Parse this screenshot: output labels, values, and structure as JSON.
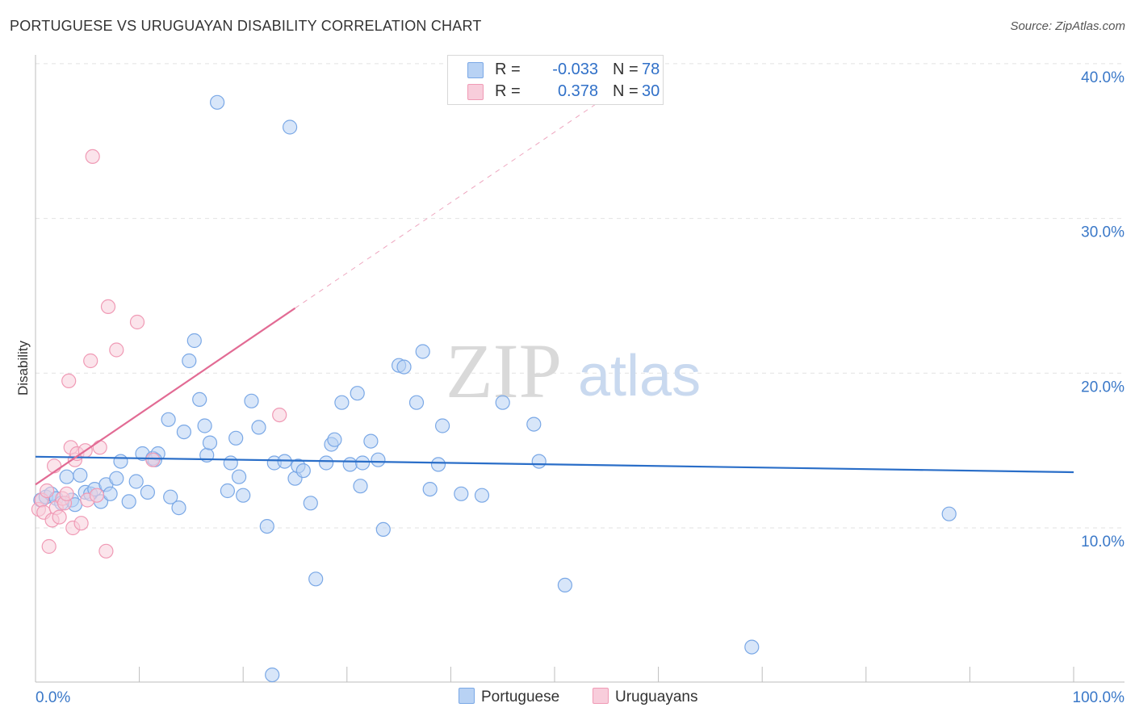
{
  "chart_data": {
    "type": "scatter",
    "title": "PORTUGUESE VS URUGUAYAN DISABILITY CORRELATION CHART",
    "source": "Source: ZipAtlas.com",
    "ylabel": "Disability",
    "xlabel": "",
    "xlim": [
      0,
      100
    ],
    "ylim": [
      0,
      40
    ],
    "y_ticks": [
      {
        "value": 10,
        "label": "10.0%"
      },
      {
        "value": 20,
        "label": "20.0%"
      },
      {
        "value": 30,
        "label": "30.0%"
      },
      {
        "value": 40,
        "label": "40.0%"
      }
    ],
    "x_tick_labels": {
      "min": "0.0%",
      "max": "100.0%"
    },
    "grid": true,
    "watermark": {
      "zip": "ZIP",
      "atlas": "atlas"
    },
    "legend_stats": [
      {
        "r_label": "R =",
        "r_value": "-0.033",
        "n_label": "N =",
        "n_value": "78"
      },
      {
        "r_label": "R =",
        "r_value": "0.378",
        "n_label": "N =",
        "n_value": "30"
      }
    ],
    "series": [
      {
        "name": "Portuguese",
        "color": "#7aa8e6",
        "fill": "#b8d2f4",
        "line_color": "#2a6ec8",
        "trend": {
          "x0": 0,
          "y0": 14.6,
          "x1": 100,
          "y1": 13.6
        },
        "points": [
          [
            0.5,
            11.8
          ],
          [
            1,
            12.0
          ],
          [
            1.5,
            12.2
          ],
          [
            2,
            11.9
          ],
          [
            2.5,
            11.6
          ],
          [
            3,
            13.3
          ],
          [
            3.5,
            11.8
          ],
          [
            3.8,
            11.5
          ],
          [
            4.3,
            13.4
          ],
          [
            4.8,
            12.3
          ],
          [
            5.3,
            12.2
          ],
          [
            5.7,
            12.5
          ],
          [
            6.3,
            11.7
          ],
          [
            6.8,
            12.8
          ],
          [
            7.2,
            12.2
          ],
          [
            7.8,
            13.2
          ],
          [
            8.2,
            14.3
          ],
          [
            9,
            11.7
          ],
          [
            9.7,
            13.0
          ],
          [
            10.3,
            14.8
          ],
          [
            10.8,
            12.3
          ],
          [
            11.3,
            14.5
          ],
          [
            11.8,
            14.8
          ],
          [
            12.8,
            17.0
          ],
          [
            13,
            12.0
          ],
          [
            13.8,
            11.3
          ],
          [
            14.3,
            16.2
          ],
          [
            14.8,
            20.8
          ],
          [
            15.3,
            22.1
          ],
          [
            15.8,
            18.3
          ],
          [
            16.3,
            16.6
          ],
          [
            16.5,
            14.7
          ],
          [
            16.8,
            15.5
          ],
          [
            17.5,
            37.5
          ],
          [
            18.5,
            12.4
          ],
          [
            18.8,
            14.2
          ],
          [
            19.3,
            15.8
          ],
          [
            19.6,
            13.3
          ],
          [
            20,
            12.1
          ],
          [
            20.8,
            18.2
          ],
          [
            21.5,
            16.5
          ],
          [
            22.3,
            10.1
          ],
          [
            22.8,
            0.5
          ],
          [
            23,
            14.2
          ],
          [
            24,
            14.3
          ],
          [
            24.5,
            35.9
          ],
          [
            25,
            13.2
          ],
          [
            25.3,
            14.0
          ],
          [
            25.8,
            13.7
          ],
          [
            26.5,
            11.6
          ],
          [
            27,
            6.7
          ],
          [
            28,
            14.2
          ],
          [
            28.5,
            15.4
          ],
          [
            28.8,
            15.7
          ],
          [
            29.5,
            18.1
          ],
          [
            30.3,
            14.1
          ],
          [
            31,
            18.7
          ],
          [
            31.3,
            12.7
          ],
          [
            31.5,
            14.2
          ],
          [
            32.3,
            15.6
          ],
          [
            33,
            14.4
          ],
          [
            33.5,
            9.9
          ],
          [
            35,
            20.5
          ],
          [
            35.5,
            20.4
          ],
          [
            36.7,
            18.1
          ],
          [
            37.3,
            21.4
          ],
          [
            38,
            12.5
          ],
          [
            38.8,
            14.1
          ],
          [
            39.2,
            16.6
          ],
          [
            41,
            12.2
          ],
          [
            43,
            12.1
          ],
          [
            45,
            18.1
          ],
          [
            48,
            16.7
          ],
          [
            48.5,
            14.3
          ],
          [
            51,
            6.3
          ],
          [
            69,
            2.3
          ],
          [
            88,
            10.9
          ],
          [
            11.5,
            14.4
          ]
        ]
      },
      {
        "name": "Uruguayans",
        "color": "#f09ab5",
        "fill": "#f8cddb",
        "line_color": "#e26b94",
        "trend": {
          "x0": 0,
          "y0": 12.8,
          "x1": 25,
          "y1": 24.2,
          "dash_x1": 54,
          "dash_y1": 37.4
        },
        "points": [
          [
            0.3,
            11.2
          ],
          [
            0.6,
            11.8
          ],
          [
            0.8,
            11.0
          ],
          [
            1.1,
            12.4
          ],
          [
            1.3,
            8.8
          ],
          [
            1.6,
            10.5
          ],
          [
            1.8,
            14.0
          ],
          [
            2.0,
            11.3
          ],
          [
            2.3,
            10.7
          ],
          [
            2.6,
            11.9
          ],
          [
            2.8,
            11.6
          ],
          [
            3.0,
            12.2
          ],
          [
            3.2,
            19.5
          ],
          [
            3.4,
            15.2
          ],
          [
            3.6,
            10.0
          ],
          [
            3.8,
            14.4
          ],
          [
            4.0,
            14.8
          ],
          [
            4.4,
            10.3
          ],
          [
            4.8,
            15.0
          ],
          [
            5.0,
            11.8
          ],
          [
            5.3,
            20.8
          ],
          [
            5.5,
            34.0
          ],
          [
            5.9,
            12.1
          ],
          [
            6.2,
            15.2
          ],
          [
            6.8,
            8.5
          ],
          [
            7.0,
            24.3
          ],
          [
            7.8,
            21.5
          ],
          [
            9.8,
            23.3
          ],
          [
            11.3,
            14.4
          ],
          [
            23.5,
            17.3
          ]
        ]
      }
    ]
  }
}
